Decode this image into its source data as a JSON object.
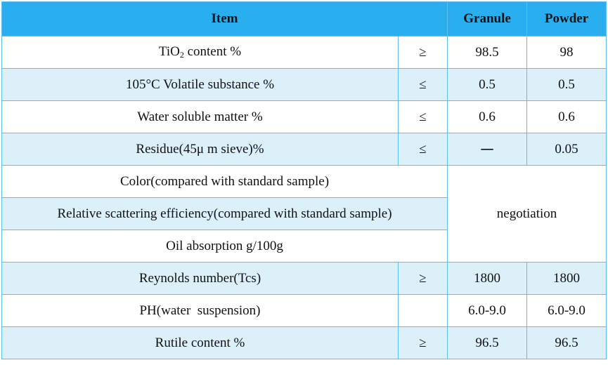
{
  "table": {
    "headers": {
      "item": "Item",
      "granule": "Granule",
      "powder": "Powder"
    },
    "rows": [
      {
        "item_prefix": "TiO",
        "item_sub": "2",
        "item_suffix": " content %",
        "op": "≥",
        "granule": "98.5",
        "powder": "98"
      },
      {
        "item": "105°C Volatile substance %",
        "op": "≤",
        "granule": "0.5",
        "powder": "0.5"
      },
      {
        "item": "Water soluble matter %",
        "op": "≤",
        "granule": "0.6",
        "powder": "0.6"
      },
      {
        "item": "Residue(45μ m sieve)%",
        "op": "≤",
        "granule": "一",
        "powder": "0.05"
      },
      {
        "item": "Color(compared with standard sample)"
      },
      {
        "item": "Relative scattering efficiency(compared with standard sample)"
      },
      {
        "item": "Oil absorption g/100g"
      },
      {
        "item": "Reynolds number(Tcs)",
        "op": "≥",
        "granule": "1800",
        "powder": "1800"
      },
      {
        "item": "PH(water  suspension)",
        "op": "",
        "granule": "6.0-9.0",
        "powder": "6.0-9.0"
      },
      {
        "item": "Rutile content %",
        "op": "≥",
        "granule": "96.5",
        "powder": "96.5"
      }
    ],
    "merged_value": "negotiation"
  }
}
